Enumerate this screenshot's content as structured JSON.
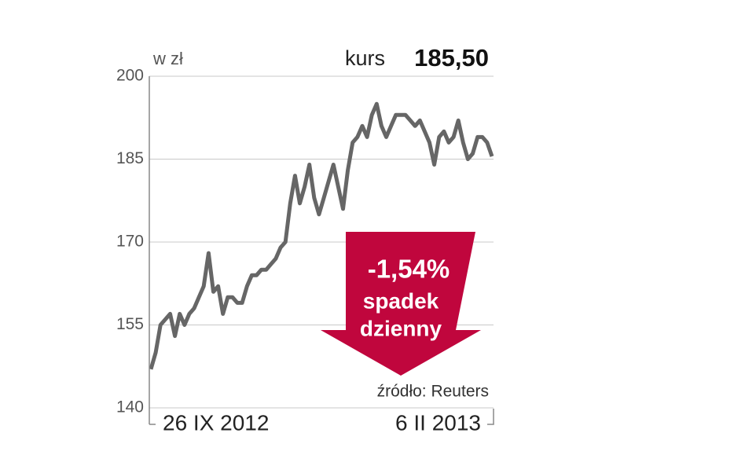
{
  "chart_data": {
    "type": "line",
    "y_label": "w zł",
    "current_label": "kurs",
    "current_value": {
      "value": 185.5,
      "label": "185,50"
    },
    "change": {
      "value": -1.54,
      "label": "-1,54%"
    },
    "change_text": [
      "spadek",
      "dzienny"
    ],
    "source": "źródło: Reuters",
    "categories": [
      "26 IX 2012",
      null,
      null,
      null,
      null,
      null,
      null,
      null,
      null,
      null,
      null,
      null,
      null,
      null,
      null,
      null,
      null,
      null,
      null,
      null,
      null,
      null,
      null,
      null,
      null,
      null,
      null,
      null,
      null,
      null,
      null,
      null,
      null,
      null,
      null,
      null,
      null,
      null,
      null,
      null,
      null,
      null,
      null,
      null,
      null,
      null,
      null,
      null,
      null,
      null,
      null,
      null,
      null,
      null,
      null,
      null,
      null,
      null,
      null,
      null,
      null,
      null,
      null,
      null,
      null,
      null,
      null,
      null,
      null,
      null,
      null,
      "6 II 2013"
    ],
    "series": [
      {
        "name": "kurs",
        "color": "#666666",
        "values": [
          147,
          150,
          155,
          156,
          157,
          153,
          157,
          155,
          157,
          158,
          160,
          162,
          168,
          161,
          162,
          157,
          160,
          160,
          159,
          159,
          162,
          164,
          164,
          165,
          165,
          166,
          167,
          169,
          170,
          177,
          182,
          177,
          180,
          184,
          178,
          175,
          178,
          181,
          184,
          180,
          176,
          183,
          188,
          189,
          191,
          189,
          193,
          195,
          191,
          189,
          191,
          193,
          193,
          193,
          192,
          191,
          192,
          190,
          188,
          184,
          189,
          190,
          188,
          189,
          192,
          188,
          185,
          186,
          189,
          189,
          188,
          185.5
        ]
      }
    ],
    "ylim": [
      140,
      200
    ],
    "yticks": [
      140,
      155,
      170,
      185,
      200
    ],
    "grid": true,
    "arrow_color": "#c0063d"
  }
}
